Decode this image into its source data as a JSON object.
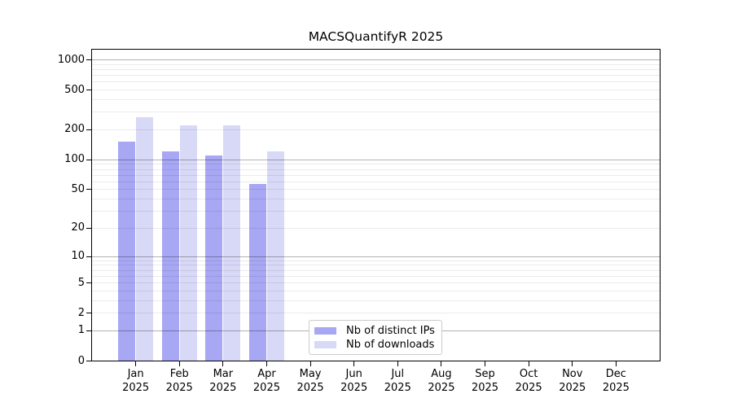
{
  "chart_data": {
    "type": "bar",
    "title": "MACSQuantifyR 2025",
    "xlabel": "",
    "ylabel": "",
    "categories": [
      "Jan",
      "Feb",
      "Mar",
      "Apr",
      "May",
      "Jun",
      "Jul",
      "Aug",
      "Sep",
      "Oct",
      "Nov",
      "Dec"
    ],
    "category_year": "2025",
    "series": [
      {
        "name": "Nb of distinct IPs",
        "color": "#a7a7f3",
        "values": [
          150,
          120,
          110,
          56,
          null,
          null,
          null,
          null,
          null,
          null,
          null,
          null
        ]
      },
      {
        "name": "Nb of downloads",
        "color": "#d8d8f7",
        "values": [
          265,
          220,
          220,
          120,
          null,
          null,
          null,
          null,
          null,
          null,
          null,
          null
        ]
      }
    ],
    "yscale": "log1p",
    "ylim": [
      0,
      1000
    ],
    "y_ticks": [
      0,
      1,
      2,
      5,
      10,
      20,
      50,
      100,
      200,
      500,
      1000
    ],
    "grid": "both",
    "grid_major_values": [
      1,
      10,
      100,
      1000
    ],
    "legend_position": "inside-bottom-center"
  }
}
